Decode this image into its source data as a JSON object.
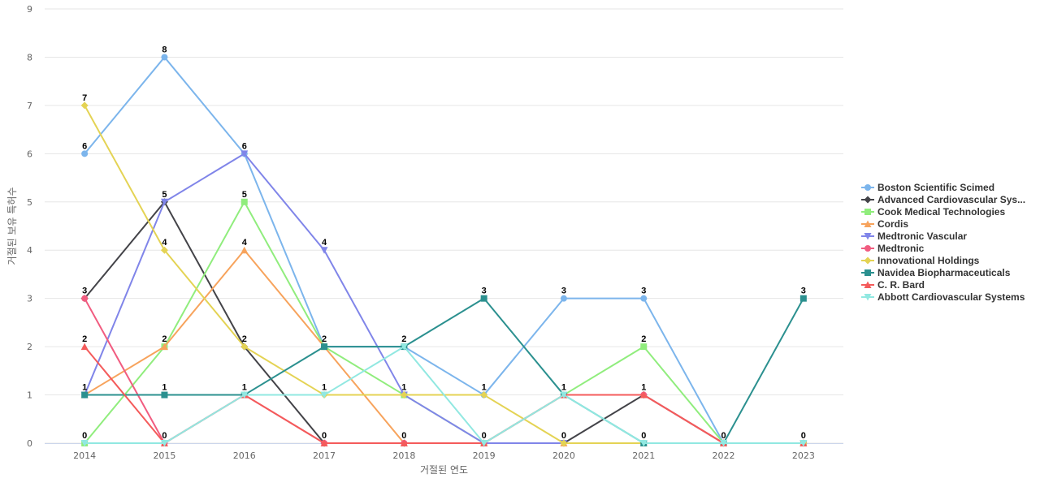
{
  "chart_data": {
    "type": "line",
    "xlabel": "거절된 연도",
    "ylabel": "거절된 보유 특허수",
    "ylim": [
      0,
      9
    ],
    "yticks": [
      0,
      1,
      2,
      3,
      4,
      5,
      6,
      7,
      8,
      9
    ],
    "categories": [
      "2014",
      "2015",
      "2016",
      "2017",
      "2018",
      "2019",
      "2020",
      "2021",
      "2022",
      "2023"
    ],
    "grid": "horizontal",
    "legend_position": "right",
    "series": [
      {
        "name": "Boston Scientific Scimed",
        "color": "#7cb5ec",
        "marker": "circle",
        "values": [
          6,
          8,
          6,
          2,
          2,
          1,
          3,
          3,
          0,
          0
        ]
      },
      {
        "name": "Advanced Cardiovascular Sys...",
        "color": "#434348",
        "marker": "diamond",
        "values": [
          3,
          5,
          2,
          0,
          0,
          0,
          0,
          1,
          0,
          0
        ]
      },
      {
        "name": "Cook Medical Technologies",
        "color": "#90ed7d",
        "marker": "square",
        "values": [
          0,
          2,
          5,
          2,
          1,
          0,
          1,
          2,
          0,
          0
        ]
      },
      {
        "name": "Cordis",
        "color": "#f7a35c",
        "marker": "triangle",
        "values": [
          1,
          2,
          4,
          2,
          0,
          0,
          0,
          0,
          0,
          0
        ]
      },
      {
        "name": "Medtronic Vascular",
        "color": "#8085e9",
        "marker": "triangle-down",
        "values": [
          1,
          5,
          6,
          4,
          1,
          0,
          0,
          0,
          0,
          0
        ]
      },
      {
        "name": "Medtronic",
        "color": "#f15c80",
        "marker": "circle",
        "values": [
          3,
          0,
          1,
          0,
          0,
          0,
          1,
          1,
          0,
          0
        ]
      },
      {
        "name": "Innovational Holdings",
        "color": "#e4d354",
        "marker": "diamond",
        "values": [
          7,
          4,
          2,
          1,
          1,
          1,
          0,
          0,
          0,
          0
        ]
      },
      {
        "name": "Navidea Biopharmaceuticals",
        "color": "#2b908f",
        "marker": "square",
        "values": [
          1,
          1,
          1,
          2,
          2,
          3,
          1,
          0,
          0,
          3
        ]
      },
      {
        "name": "C. R. Bard",
        "color": "#f45b5b",
        "marker": "triangle",
        "values": [
          2,
          0,
          1,
          0,
          0,
          0,
          1,
          1,
          0,
          0
        ]
      },
      {
        "name": "Abbott Cardiovascular Systems",
        "color": "#91e8e1",
        "marker": "triangle-down",
        "values": [
          0,
          0,
          1,
          1,
          2,
          0,
          1,
          0,
          0,
          0
        ]
      }
    ],
    "data_labels": [
      {
        "x": "2014",
        "value": 7
      },
      {
        "x": "2014",
        "value": 6
      },
      {
        "x": "2014",
        "value": 3
      },
      {
        "x": "2014",
        "value": 2
      },
      {
        "x": "2014",
        "value": 1
      },
      {
        "x": "2014",
        "value": 0
      },
      {
        "x": "2015",
        "value": 8
      },
      {
        "x": "2015",
        "value": 5
      },
      {
        "x": "2015",
        "value": 4
      },
      {
        "x": "2015",
        "value": 2
      },
      {
        "x": "2015",
        "value": 1
      },
      {
        "x": "2015",
        "value": 0
      },
      {
        "x": "2016",
        "value": 6
      },
      {
        "x": "2016",
        "value": 5
      },
      {
        "x": "2016",
        "value": 4
      },
      {
        "x": "2016",
        "value": 2
      },
      {
        "x": "2016",
        "value": 1
      },
      {
        "x": "2017",
        "value": 4
      },
      {
        "x": "2017",
        "value": 2
      },
      {
        "x": "2017",
        "value": 1
      },
      {
        "x": "2017",
        "value": 0
      },
      {
        "x": "2018",
        "value": 2
      },
      {
        "x": "2018",
        "value": 1
      },
      {
        "x": "2018",
        "value": 0
      },
      {
        "x": "2019",
        "value": 3
      },
      {
        "x": "2019",
        "value": 1
      },
      {
        "x": "2019",
        "value": 0
      },
      {
        "x": "2020",
        "value": 3
      },
      {
        "x": "2020",
        "value": 1
      },
      {
        "x": "2020",
        "value": 0
      },
      {
        "x": "2021",
        "value": 3
      },
      {
        "x": "2021",
        "value": 2
      },
      {
        "x": "2021",
        "value": 1
      },
      {
        "x": "2021",
        "value": 0
      },
      {
        "x": "2022",
        "value": 0
      },
      {
        "x": "2023",
        "value": 3
      },
      {
        "x": "2023",
        "value": 0
      }
    ]
  }
}
